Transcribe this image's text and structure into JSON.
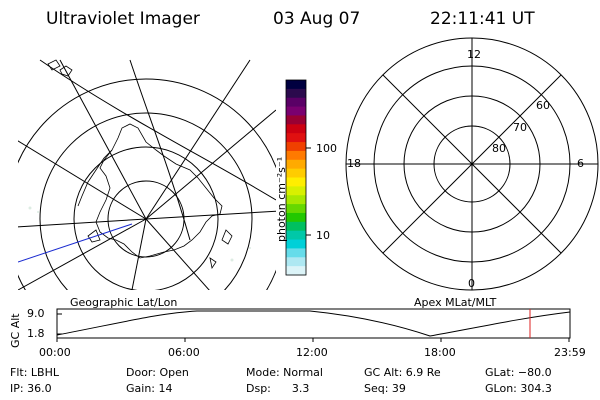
{
  "header": {
    "instrument": "Ultraviolet Imager",
    "date": "03 Aug 07",
    "time": "22:11:41 UT"
  },
  "colorbar": {
    "unit_label": "photon cm⁻²s⁻¹",
    "ticks": [
      "100",
      "10"
    ],
    "colors_top_to_bottom": [
      "#000040",
      "#2b0a4d",
      "#5a0066",
      "#7a0070",
      "#990033",
      "#cc0011",
      "#e01010",
      "#f04000",
      "#ff7a00",
      "#ffaa00",
      "#ffcc00",
      "#ffee00",
      "#d8f000",
      "#a8e800",
      "#66d800",
      "#22c800",
      "#00c060",
      "#00c8a8",
      "#00d0d8",
      "#66dcea",
      "#aee8f2",
      "#dcf4f8"
    ]
  },
  "left_map": {
    "label": "Geographic Lat/Lon"
  },
  "right_map": {
    "label": "Apex MLat/MLT",
    "mlt_labels": {
      "top": "12",
      "left": "18",
      "right": "6",
      "bottom": "0"
    },
    "mlat_labels": [
      "60",
      "70",
      "80"
    ]
  },
  "altitude_plot": {
    "ylabel": "GC Alt",
    "yticks": [
      "9.0",
      "1.8"
    ],
    "xticks": [
      "00:00",
      "06:00",
      "12:00",
      "18:00",
      "23:59"
    ],
    "marker_color": "#dd2222"
  },
  "footer": {
    "flt": "Flt: LBHL",
    "ip": "IP: 36.0",
    "door": "Door: Open",
    "gain": "Gain: 14",
    "mode": "Mode: Normal",
    "dsp": "Dsp:      3.3",
    "gcalt": "GC Alt: 6.9 Re",
    "seq": "Seq: 39",
    "glat": "GLat: −80.0",
    "glon": "GLon: 304.3"
  }
}
